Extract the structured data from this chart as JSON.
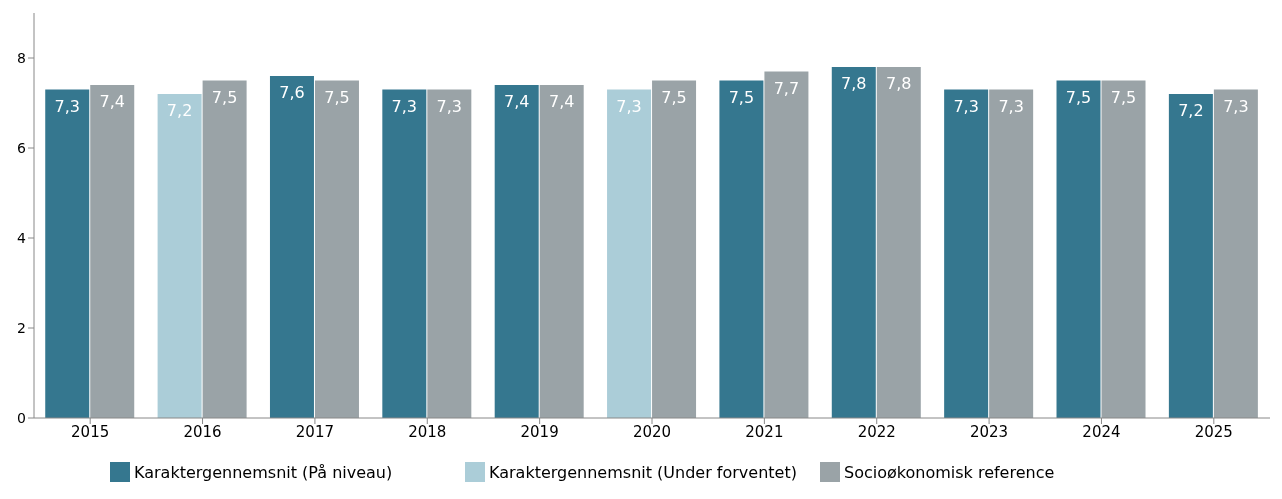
{
  "chart_data": {
    "type": "bar",
    "categories": [
      "2015",
      "2016",
      "2017",
      "2018",
      "2019",
      "2020",
      "2021",
      "2022",
      "2023",
      "2024",
      "2025"
    ],
    "series": [
      {
        "name": "Karaktergennemsnit (På niveau)",
        "color": "#35778f",
        "values": [
          7.3,
          null,
          7.6,
          7.3,
          7.4,
          null,
          7.5,
          7.8,
          7.3,
          7.5,
          7.2
        ],
        "value_labels": [
          "7,3",
          null,
          "7,6",
          "7,3",
          "7,4",
          null,
          "7,5",
          "7,8",
          "7,3",
          "7,5",
          "7,2"
        ]
      },
      {
        "name": "Karaktergennemsnit (Under forventet)",
        "color": "#abcdd8",
        "values": [
          null,
          7.2,
          null,
          null,
          null,
          7.3,
          null,
          null,
          null,
          null,
          null
        ],
        "value_labels": [
          null,
          "7,2",
          null,
          null,
          null,
          "7,3",
          null,
          null,
          null,
          null,
          null
        ]
      },
      {
        "name": "Socioøkonomisk reference",
        "color": "#9aa3a7",
        "values": [
          7.4,
          7.5,
          7.5,
          7.3,
          7.4,
          7.5,
          7.7,
          7.8,
          7.3,
          7.5,
          7.3
        ],
        "value_labels": [
          "7,4",
          "7,5",
          "7,5",
          "7,3",
          "7,4",
          "7,5",
          "7,7",
          "7,8",
          "7,3",
          "7,5",
          "7,3"
        ]
      }
    ],
    "ylim": [
      0,
      9
    ],
    "yticks": [
      0,
      2,
      4,
      6,
      8
    ],
    "grid": false,
    "legend": "bottom"
  }
}
